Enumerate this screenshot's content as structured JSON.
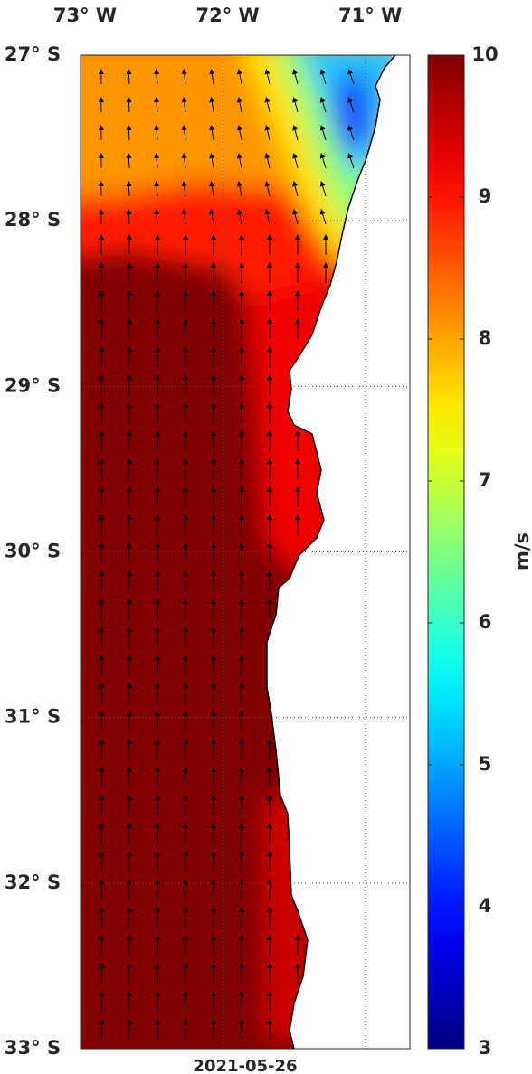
{
  "map": {
    "lon_ticks": [
      {
        "value": -73,
        "label": "73° W"
      },
      {
        "value": -72,
        "label": "72° W"
      },
      {
        "value": -71,
        "label": "71° W"
      }
    ],
    "lon_lim": [
      -73,
      -70.69
    ],
    "lat_ticks": [
      {
        "value": -27,
        "label": "27° S"
      },
      {
        "value": -28,
        "label": "28° S"
      },
      {
        "value": -29,
        "label": "29° S"
      },
      {
        "value": -30,
        "label": "30° S"
      },
      {
        "value": -31,
        "label": "31° S"
      },
      {
        "value": -32,
        "label": "32° S"
      },
      {
        "value": -33,
        "label": "33° S"
      }
    ],
    "lat_lim": [
      -33,
      -27
    ],
    "date": "2021-05-26",
    "colorbar": {
      "label": "m/s",
      "lim": [
        3,
        10
      ],
      "ticks": [
        3,
        4,
        5,
        6,
        7,
        8,
        9,
        10
      ],
      "colormap": "jet"
    }
  }
}
